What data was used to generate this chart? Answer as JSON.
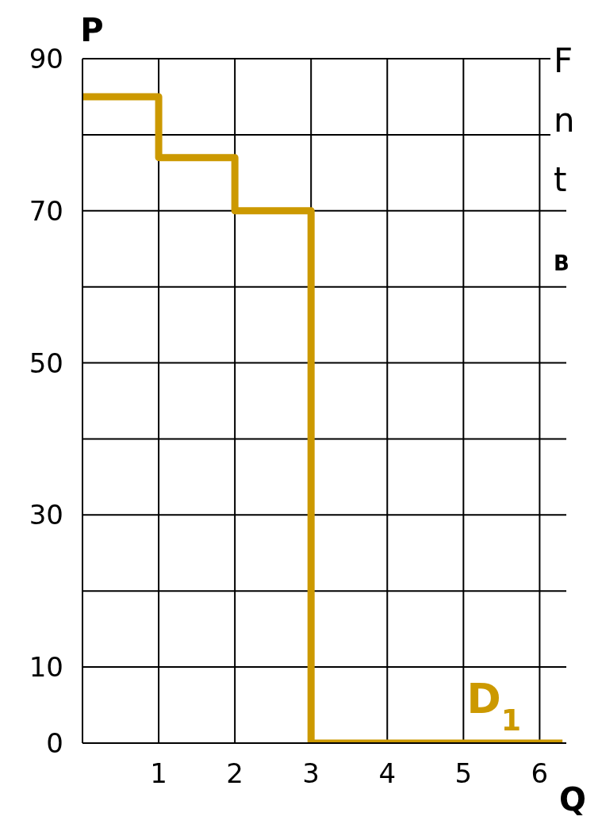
{
  "chart_data": {
    "type": "step",
    "xlabel": "Q",
    "ylabel": "P",
    "x": [
      0,
      1,
      2,
      3,
      6.3
    ],
    "series": [
      {
        "color": "#cc9900",
        "values": [
          85,
          77,
          70,
          0,
          0
        ]
      }
    ],
    "xlim": [
      0,
      6.35
    ],
    "xticks": [
      1,
      2,
      3,
      4,
      5,
      6
    ],
    "ylim": [
      0,
      90
    ],
    "yticks": [
      0,
      10,
      {
        "value": 20,
        "label": null
      },
      30,
      {
        "value": 40,
        "label": null
      },
      50,
      {
        "value": 60,
        "label": null
      },
      70,
      {
        "value": 80,
        "label": null
      },
      90
    ],
    "grid": true,
    "marker": "none",
    "line_style": "solid",
    "annotations": [
      "D$_{1}$",
      "F",
      "n",
      "t",
      "B"
    ]
  }
}
